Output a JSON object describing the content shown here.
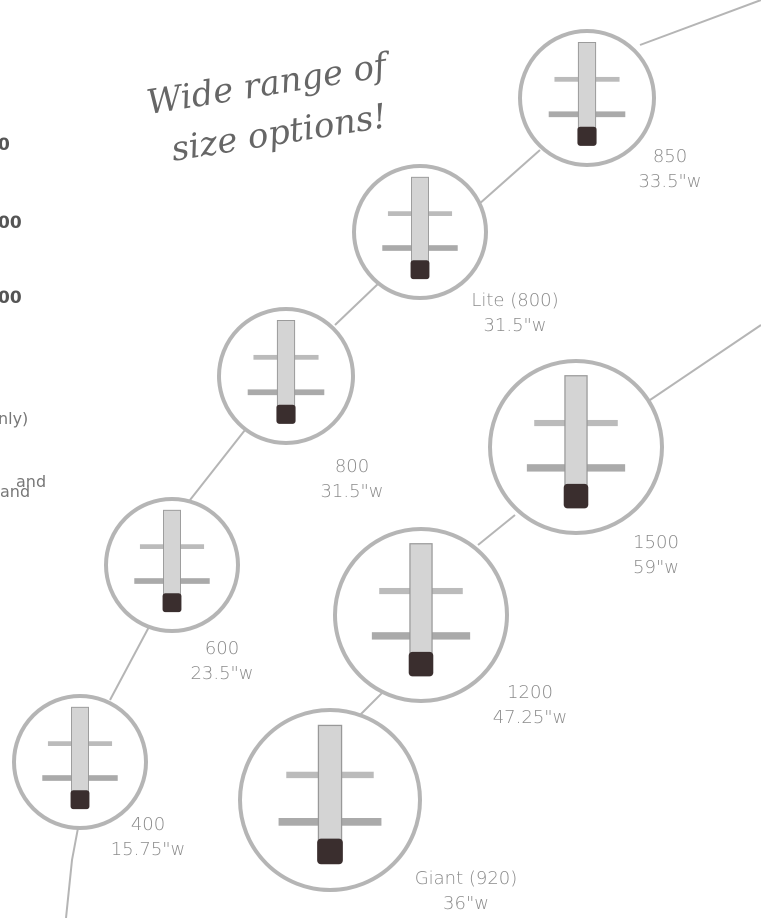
{
  "heading": [
    "Wide range of",
    "size options!"
  ],
  "side_text": [
    "0",
    "00",
    "00",
    "nly)",
    "and",
    "and"
  ],
  "items": [
    {
      "name": "850",
      "width": "33.5\"w"
    },
    {
      "name": "Lite (800)",
      "width": "31.5\"w"
    },
    {
      "name": "800",
      "width": "31.5\"w"
    },
    {
      "name": "600",
      "width": "23.5\"w"
    },
    {
      "name": "400",
      "width": "15.75\"w"
    },
    {
      "name": "1500",
      "width": "59\"w"
    },
    {
      "name": "1200",
      "width": "47.25\"w"
    },
    {
      "name": "Giant (920)",
      "width": "36\"w"
    }
  ]
}
